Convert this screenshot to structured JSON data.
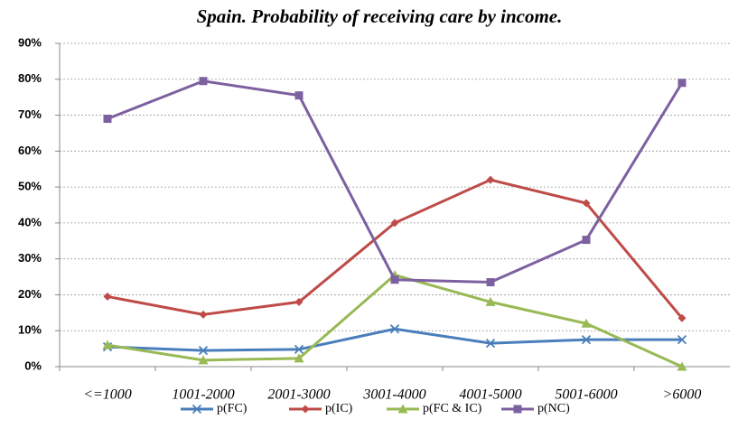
{
  "chart_data": {
    "type": "line",
    "title": "Spain. Probability of receiving care by income.",
    "categories": [
      "<=1000",
      "1001-2000",
      "2001-3000",
      "3001-4000",
      "4001-5000",
      "5001-6000",
      ">6000"
    ],
    "series": [
      {
        "name": "p(FC)",
        "color": "#4a7ebb",
        "marker": "x",
        "values": [
          5.5,
          4.5,
          4.8,
          10.5,
          6.5,
          7.5,
          7.5
        ]
      },
      {
        "name": "p(IC)",
        "color": "#be4b48",
        "marker": "diamond",
        "values": [
          19.5,
          14.5,
          18,
          40,
          52,
          45.5,
          13.5
        ]
      },
      {
        "name": "p(FC & IC)",
        "color": "#98b954",
        "marker": "triangle",
        "values": [
          6,
          1.8,
          2.3,
          25.5,
          18,
          12,
          0
        ]
      },
      {
        "name": "p(NC)",
        "color": "#7d60a0",
        "marker": "square",
        "values": [
          69,
          79.5,
          75.5,
          24.2,
          23.5,
          35.3,
          79
        ]
      }
    ],
    "ylim": [
      0,
      90
    ],
    "yticks": [
      {
        "value": 0,
        "label": "0%"
      },
      {
        "value": 10,
        "label": "10%"
      },
      {
        "value": 20,
        "label": "20%"
      },
      {
        "value": 30,
        "label": "30%"
      },
      {
        "value": 40,
        "label": "40%"
      },
      {
        "value": 50,
        "label": "50%"
      },
      {
        "value": 60,
        "label": "60%"
      },
      {
        "value": 70,
        "label": "70%"
      },
      {
        "value": 80,
        "label": "80%"
      },
      {
        "value": 90,
        "label": "90%"
      }
    ],
    "grid": true,
    "legend": "bottom"
  }
}
